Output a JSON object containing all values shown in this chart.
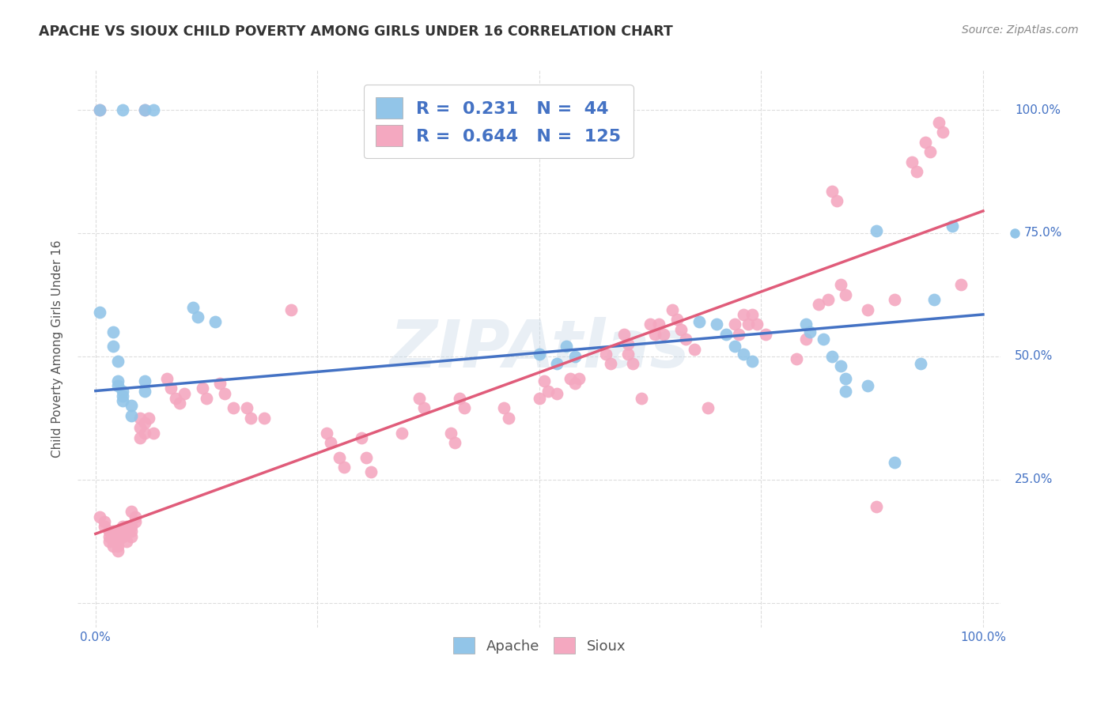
{
  "title": "APACHE VS SIOUX CHILD POVERTY AMONG GIRLS UNDER 16 CORRELATION CHART",
  "source": "Source: ZipAtlas.com",
  "ylabel": "Child Poverty Among Girls Under 16",
  "xlim": [
    -0.02,
    1.02
  ],
  "ylim": [
    -0.05,
    1.08
  ],
  "xticks": [
    0.0,
    0.25,
    0.5,
    0.75,
    1.0
  ],
  "yticks": [
    0.0,
    0.25,
    0.5,
    0.75,
    1.0
  ],
  "xticklabels": [
    "0.0%",
    "",
    "",
    "",
    "100.0%"
  ],
  "right_ylabels": [
    [
      1.0,
      "100.0%"
    ],
    [
      0.75,
      "75.0%"
    ],
    [
      0.5,
      "50.0%"
    ],
    [
      0.25,
      "25.0%"
    ]
  ],
  "apache_color": "#92C5E8",
  "sioux_color": "#F4A8C0",
  "apache_line_color": "#4472C4",
  "sioux_line_color": "#E05C7A",
  "apache_R": "0.231",
  "apache_N": "44",
  "sioux_R": "0.644",
  "sioux_N": "125",
  "watermark": "ZIPAtlas",
  "background_color": "#ffffff",
  "grid_color": "#dddddd",
  "apache_trendline": [
    [
      0.0,
      0.43
    ],
    [
      1.0,
      0.585
    ]
  ],
  "sioux_trendline": [
    [
      0.0,
      0.14
    ],
    [
      1.0,
      0.795
    ]
  ],
  "apache_scatter": [
    [
      0.005,
      1.0
    ],
    [
      0.03,
      1.0
    ],
    [
      0.055,
      1.0
    ],
    [
      0.065,
      1.0
    ],
    [
      0.005,
      0.59
    ],
    [
      0.02,
      0.55
    ],
    [
      0.02,
      0.52
    ],
    [
      0.025,
      0.49
    ],
    [
      0.025,
      0.45
    ],
    [
      0.025,
      0.44
    ],
    [
      0.03,
      0.43
    ],
    [
      0.03,
      0.42
    ],
    [
      0.03,
      0.41
    ],
    [
      0.04,
      0.4
    ],
    [
      0.04,
      0.38
    ],
    [
      0.055,
      0.45
    ],
    [
      0.055,
      0.43
    ],
    [
      0.11,
      0.6
    ],
    [
      0.115,
      0.58
    ],
    [
      0.135,
      0.57
    ],
    [
      0.5,
      0.505
    ],
    [
      0.52,
      0.485
    ],
    [
      0.53,
      0.52
    ],
    [
      0.54,
      0.5
    ],
    [
      0.68,
      0.57
    ],
    [
      0.7,
      0.565
    ],
    [
      0.71,
      0.545
    ],
    [
      0.72,
      0.52
    ],
    [
      0.73,
      0.505
    ],
    [
      0.74,
      0.49
    ],
    [
      0.8,
      0.565
    ],
    [
      0.805,
      0.55
    ],
    [
      0.82,
      0.535
    ],
    [
      0.83,
      0.5
    ],
    [
      0.84,
      0.48
    ],
    [
      0.845,
      0.455
    ],
    [
      0.845,
      0.43
    ],
    [
      0.87,
      0.44
    ],
    [
      0.88,
      0.755
    ],
    [
      0.9,
      0.285
    ],
    [
      0.93,
      0.485
    ],
    [
      0.945,
      0.615
    ],
    [
      0.965,
      0.765
    ]
  ],
  "sioux_scatter": [
    [
      0.005,
      1.0
    ],
    [
      0.055,
      1.0
    ],
    [
      0.005,
      0.175
    ],
    [
      0.01,
      0.165
    ],
    [
      0.01,
      0.155
    ],
    [
      0.015,
      0.145
    ],
    [
      0.015,
      0.135
    ],
    [
      0.015,
      0.125
    ],
    [
      0.02,
      0.145
    ],
    [
      0.02,
      0.135
    ],
    [
      0.02,
      0.125
    ],
    [
      0.02,
      0.115
    ],
    [
      0.025,
      0.145
    ],
    [
      0.025,
      0.135
    ],
    [
      0.025,
      0.125
    ],
    [
      0.025,
      0.115
    ],
    [
      0.025,
      0.105
    ],
    [
      0.03,
      0.155
    ],
    [
      0.03,
      0.145
    ],
    [
      0.03,
      0.135
    ],
    [
      0.035,
      0.155
    ],
    [
      0.035,
      0.145
    ],
    [
      0.035,
      0.125
    ],
    [
      0.04,
      0.185
    ],
    [
      0.04,
      0.155
    ],
    [
      0.04,
      0.145
    ],
    [
      0.04,
      0.135
    ],
    [
      0.045,
      0.175
    ],
    [
      0.045,
      0.165
    ],
    [
      0.05,
      0.375
    ],
    [
      0.05,
      0.355
    ],
    [
      0.05,
      0.335
    ],
    [
      0.055,
      0.365
    ],
    [
      0.055,
      0.345
    ],
    [
      0.06,
      0.375
    ],
    [
      0.065,
      0.345
    ],
    [
      0.08,
      0.455
    ],
    [
      0.085,
      0.435
    ],
    [
      0.09,
      0.415
    ],
    [
      0.095,
      0.405
    ],
    [
      0.1,
      0.425
    ],
    [
      0.12,
      0.435
    ],
    [
      0.125,
      0.415
    ],
    [
      0.14,
      0.445
    ],
    [
      0.145,
      0.425
    ],
    [
      0.155,
      0.395
    ],
    [
      0.17,
      0.395
    ],
    [
      0.175,
      0.375
    ],
    [
      0.19,
      0.375
    ],
    [
      0.22,
      0.595
    ],
    [
      0.26,
      0.345
    ],
    [
      0.265,
      0.325
    ],
    [
      0.275,
      0.295
    ],
    [
      0.28,
      0.275
    ],
    [
      0.3,
      0.335
    ],
    [
      0.305,
      0.295
    ],
    [
      0.31,
      0.265
    ],
    [
      0.345,
      0.345
    ],
    [
      0.365,
      0.415
    ],
    [
      0.37,
      0.395
    ],
    [
      0.4,
      0.345
    ],
    [
      0.405,
      0.325
    ],
    [
      0.41,
      0.415
    ],
    [
      0.415,
      0.395
    ],
    [
      0.46,
      0.395
    ],
    [
      0.465,
      0.375
    ],
    [
      0.5,
      0.415
    ],
    [
      0.505,
      0.45
    ],
    [
      0.51,
      0.43
    ],
    [
      0.52,
      0.425
    ],
    [
      0.535,
      0.455
    ],
    [
      0.54,
      0.445
    ],
    [
      0.545,
      0.455
    ],
    [
      0.575,
      0.505
    ],
    [
      0.58,
      0.485
    ],
    [
      0.595,
      0.545
    ],
    [
      0.6,
      0.525
    ],
    [
      0.6,
      0.505
    ],
    [
      0.605,
      0.485
    ],
    [
      0.615,
      0.415
    ],
    [
      0.625,
      0.565
    ],
    [
      0.63,
      0.545
    ],
    [
      0.635,
      0.565
    ],
    [
      0.64,
      0.545
    ],
    [
      0.65,
      0.595
    ],
    [
      0.655,
      0.575
    ],
    [
      0.66,
      0.555
    ],
    [
      0.665,
      0.535
    ],
    [
      0.675,
      0.515
    ],
    [
      0.69,
      0.395
    ],
    [
      0.72,
      0.565
    ],
    [
      0.725,
      0.545
    ],
    [
      0.73,
      0.585
    ],
    [
      0.735,
      0.565
    ],
    [
      0.74,
      0.585
    ],
    [
      0.745,
      0.565
    ],
    [
      0.755,
      0.545
    ],
    [
      0.79,
      0.495
    ],
    [
      0.8,
      0.535
    ],
    [
      0.815,
      0.605
    ],
    [
      0.825,
      0.615
    ],
    [
      0.83,
      0.835
    ],
    [
      0.835,
      0.815
    ],
    [
      0.84,
      0.645
    ],
    [
      0.845,
      0.625
    ],
    [
      0.87,
      0.595
    ],
    [
      0.88,
      0.195
    ],
    [
      0.9,
      0.615
    ],
    [
      0.92,
      0.895
    ],
    [
      0.925,
      0.875
    ],
    [
      0.935,
      0.935
    ],
    [
      0.94,
      0.915
    ],
    [
      0.95,
      0.975
    ],
    [
      0.955,
      0.955
    ],
    [
      0.975,
      0.645
    ]
  ]
}
